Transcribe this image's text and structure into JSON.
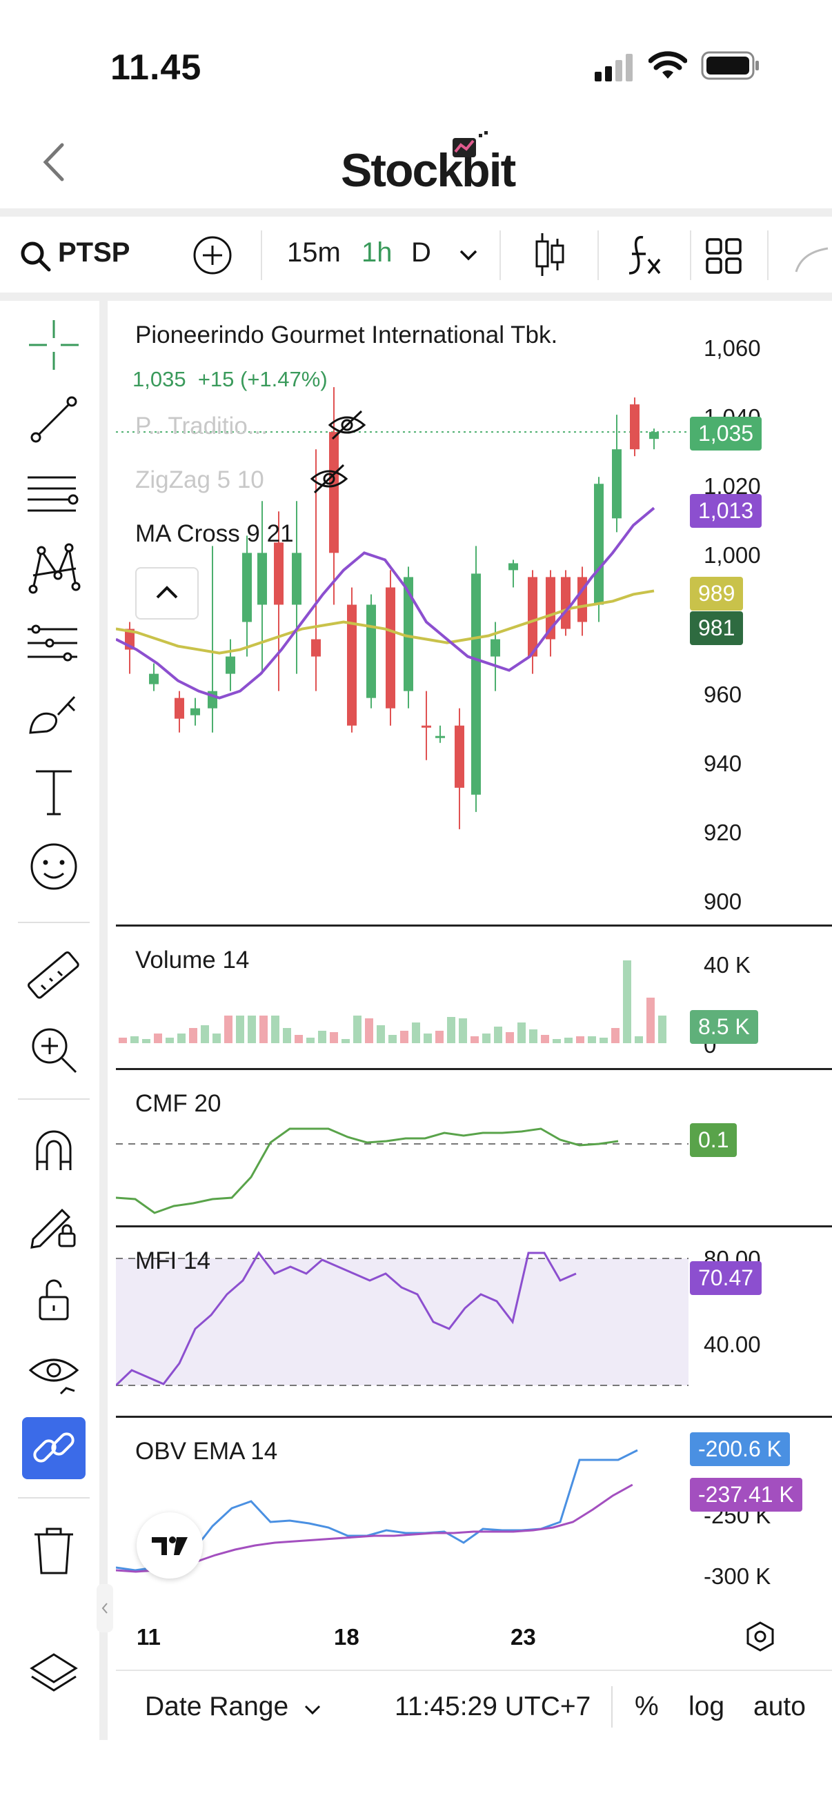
{
  "status_bar": {
    "time": "11.45"
  },
  "header": {
    "app_name": "Stockbit"
  },
  "toolbar": {
    "symbol": "PTSP",
    "intervals": [
      "15m",
      "1h",
      "D"
    ],
    "active_interval": "1h"
  },
  "chart": {
    "company_name": "Pioneerindo Gourmet International Tbk.",
    "last_price": "1,035",
    "change": "+15 (+1.47%)",
    "indicators": [
      {
        "label": "P.. Traditio..."
      },
      {
        "label": "ZigZag 5 10"
      },
      {
        "label": "MA Cross 9 21"
      }
    ],
    "price_axis": [
      "1,060",
      "1,040",
      "1,020",
      "1,000",
      "960",
      "940",
      "920",
      "900"
    ],
    "badges": {
      "last": "1,035",
      "ma_purple": "1,013",
      "ma_yellow": "989",
      "ma_dark": "981"
    },
    "colors": {
      "up": "#4caf6e",
      "down": "#e05252",
      "purple": "#8c4fcf",
      "yellow": "#c9c24a",
      "blue": "#4a90e2"
    }
  },
  "volume_pane": {
    "label": "Volume 14",
    "axis_top": "40 K",
    "axis_zero": "0",
    "badge": "8.5 K"
  },
  "cmf_pane": {
    "label": "CMF 20",
    "badge": "0.1"
  },
  "mfi_pane": {
    "label": "MFI 14",
    "axis_top": "80.00",
    "axis_mid": "40.00",
    "badge": "70.47"
  },
  "obv_pane": {
    "label": "OBV EMA 14",
    "badge_blue": "-200.6 K",
    "badge_purple": "-237.41 K",
    "axis_mid": "-250 K",
    "axis_low": "-300 K"
  },
  "x_axis": [
    "11",
    "18",
    "23"
  ],
  "bottom_bar": {
    "date_range": "Date Range",
    "clock": "11:45:29 UTC+7",
    "percent": "%",
    "log": "log",
    "auto": "auto"
  },
  "chart_data": {
    "type": "candlestick",
    "title": "Pioneerindo Gourmet International Tbk.",
    "x_ticks": [
      "11",
      "18",
      "23"
    ],
    "ylim": [
      900,
      1060
    ],
    "ma_cross_9": [
      975,
      972,
      968,
      963,
      960,
      958,
      960,
      965,
      972,
      980,
      988,
      995,
      1000,
      998,
      990,
      980,
      975,
      970,
      968,
      966,
      970,
      978,
      985,
      993,
      1000,
      1008,
      1013
    ],
    "ma_cross_21": [
      978,
      977,
      975,
      973,
      972,
      971,
      972,
      974,
      976,
      978,
      979,
      980,
      979,
      978,
      976,
      975,
      974,
      975,
      976,
      978,
      980,
      982,
      984,
      985,
      986,
      988,
      989
    ],
    "last": 1035,
    "volume_last": "8.5 K",
    "cmf_last": 0.1,
    "mfi_last": 70.47,
    "obv_last": "-200.6 K",
    "obv_ema_last": "-237.41 K"
  }
}
